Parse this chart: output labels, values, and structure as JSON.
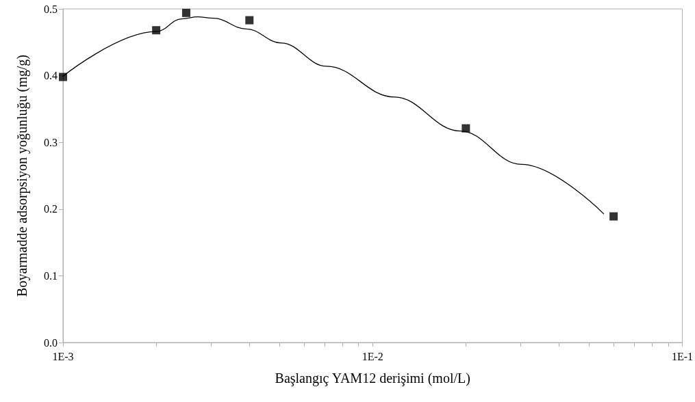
{
  "chart_data": {
    "type": "scatter",
    "xlabel": "Başlangıç YAM12 derişimi (mol/L)",
    "ylabel": "Boyarmadde adsorpsiyon yoğunluğu (mg/g)",
    "log": "x",
    "xlim": [
      0.001,
      0.1
    ],
    "xticks": [
      {
        "value": 0.001,
        "label": "1E-3"
      },
      {
        "value": 0.01,
        "label": "1E-2"
      },
      {
        "value": 0.1,
        "label": "1E-1"
      }
    ],
    "ylim": [
      0,
      0.5
    ],
    "yticks": [
      {
        "value": 0,
        "label": "0.0"
      },
      {
        "value": 0.1,
        "label": "0.1"
      },
      {
        "value": 0.2,
        "label": "0.2"
      },
      {
        "value": 0.3,
        "label": "0.3"
      },
      {
        "value": 0.4,
        "label": "0.4"
      },
      {
        "value": 0.5,
        "label": "0.5"
      }
    ],
    "grid": false,
    "series": [
      {
        "type": "line",
        "color": "#000000",
        "marker": "none",
        "line_style": "solid",
        "x": [
          0.001,
          0.002,
          0.00242,
          0.00272,
          0.00306,
          0.00391,
          0.00506,
          0.0071,
          0.01175,
          0.0192,
          0.0302,
          0.0557
        ],
        "values": [
          0.399,
          0.466,
          0.485,
          0.488,
          0.486,
          0.47,
          0.449,
          0.414,
          0.368,
          0.317,
          0.267,
          0.193
        ]
      },
      {
        "color": "#000000",
        "marker": "square",
        "x": [
          0.001,
          0.002,
          0.0025,
          0.004,
          0.02,
          0.06
        ],
        "values": [
          0.398,
          0.468,
          0.494,
          0.483,
          0.321,
          0.189
        ]
      }
    ]
  }
}
